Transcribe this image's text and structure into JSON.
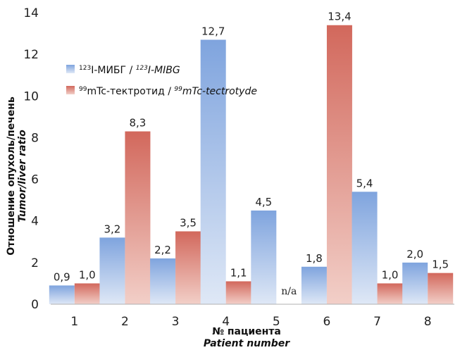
{
  "chart_data": {
    "type": "bar",
    "categories": [
      "1",
      "2",
      "3",
      "4",
      "5",
      "6",
      "7",
      "8"
    ],
    "series": [
      {
        "name": "123I-МИБГ / 123I-MIBG",
        "legend_parts": {
          "iso1": "123",
          "ru": "I-МИБГ / ",
          "iso2": "123",
          "en": "I-MIBG"
        },
        "color": "#8fb0e0",
        "values": [
          0.9,
          3.2,
          2.2,
          12.7,
          4.5,
          1.8,
          5.4,
          2.0
        ],
        "labels": [
          "0,9",
          "3,2",
          "2,2",
          "12,7",
          "4,5",
          "1,8",
          "5,4",
          "2,0"
        ]
      },
      {
        "name": "99mTc-тектротид / 99mTc-tectrotyde",
        "legend_parts": {
          "iso1": "99",
          "ru": "mTc-тектротид / ",
          "iso2": "99",
          "en": "mTc-tectrotyde"
        },
        "color": "#d8786a",
        "values": [
          1.0,
          8.3,
          3.5,
          1.1,
          null,
          13.4,
          1.0,
          1.5
        ],
        "labels": [
          "1,0",
          "8,3",
          "3,5",
          "1,1",
          "n/a",
          "13,4",
          "1,0",
          "1,5"
        ]
      }
    ],
    "ylim": [
      0,
      14
    ],
    "yticks": [
      0,
      2,
      4,
      6,
      8,
      10,
      12,
      14
    ],
    "ytick_labels": [
      "0",
      "2",
      "4",
      "6",
      "8",
      "10",
      "12",
      "14"
    ],
    "xlabel_ru": "№ пациента",
    "xlabel_en": "Patient number",
    "ylabel_ru": "Отношение опухоль/печень",
    "ylabel_en": "Tumor/liver ratio",
    "legend_position": "upper-left"
  }
}
